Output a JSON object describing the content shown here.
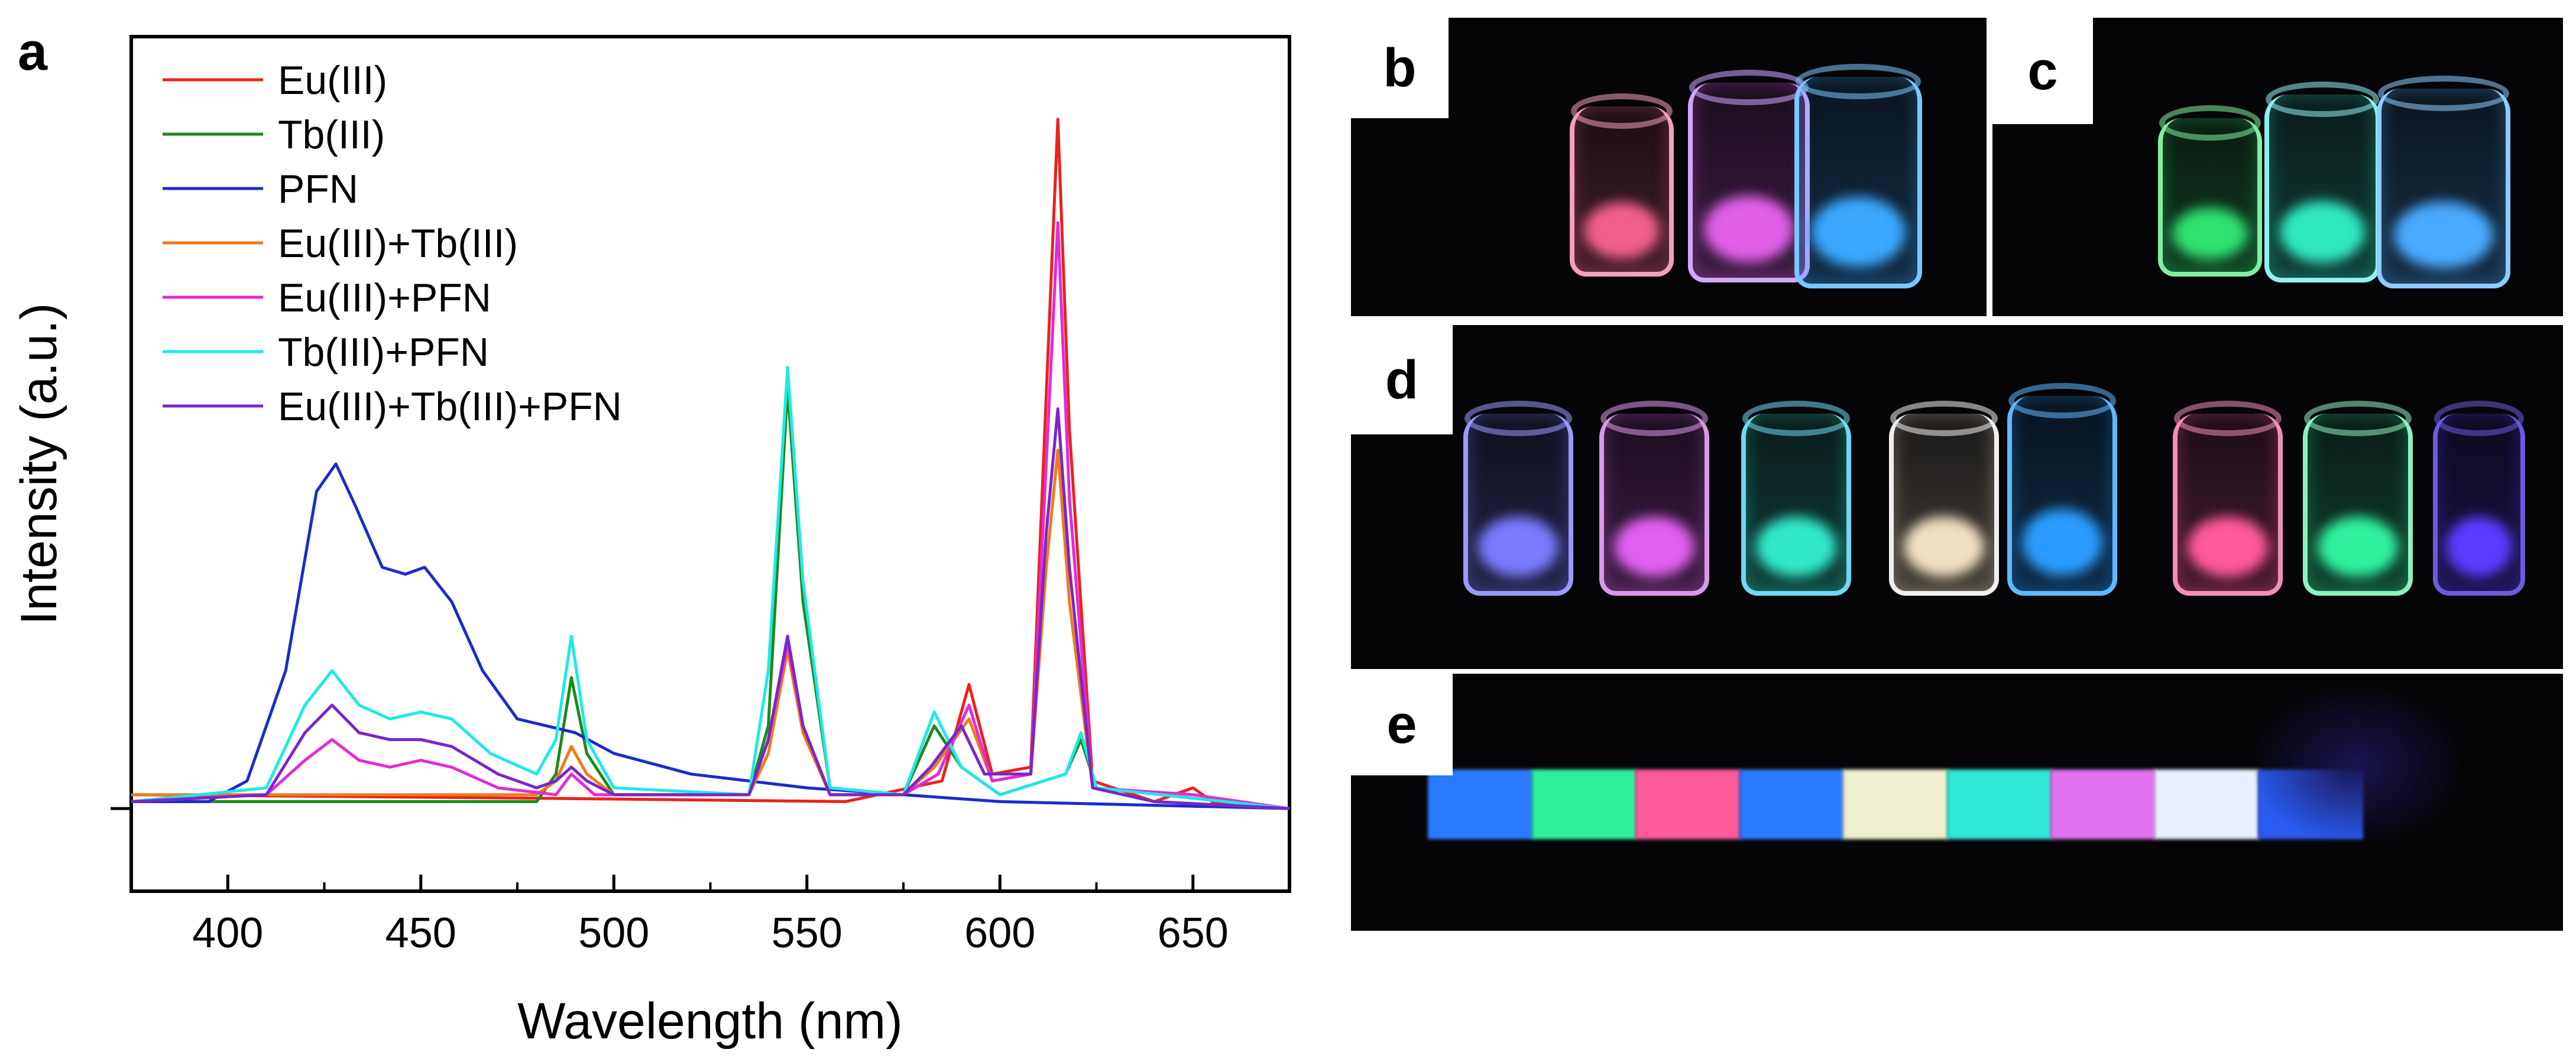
{
  "panel_labels": {
    "a": "a",
    "b": "b",
    "c": "c",
    "d": "d",
    "e": "e"
  },
  "chart_data": {
    "type": "line",
    "title": "",
    "xlabel": "Wavelength (nm)",
    "ylabel": "Intensity (a.u.)",
    "xlim": [
      375,
      675
    ],
    "ylim": [
      -0.12,
      1.12
    ],
    "xticks": [
      400,
      450,
      500,
      550,
      600,
      650
    ],
    "xtick_labels": [
      "400",
      "450",
      "500",
      "550",
      "600",
      "650"
    ],
    "yticks": [
      0
    ],
    "grid": false,
    "legend_position": "top-left",
    "series": [
      {
        "name": "Eu(III)",
        "color": "#e8231c",
        "points": [
          [
            375,
            0.02
          ],
          [
            480,
            0.015
          ],
          [
            560,
            0.01
          ],
          [
            585,
            0.04
          ],
          [
            592,
            0.18
          ],
          [
            598,
            0.05
          ],
          [
            608,
            0.06
          ],
          [
            612,
            0.6
          ],
          [
            615,
            1.0
          ],
          [
            618,
            0.55
          ],
          [
            624,
            0.04
          ],
          [
            640,
            0.01
          ],
          [
            650,
            0.03
          ],
          [
            655,
            0.01
          ],
          [
            675,
            0.0
          ]
        ]
      },
      {
        "name": "Tb(III)",
        "color": "#1b8a1b",
        "points": [
          [
            375,
            0.01
          ],
          [
            480,
            0.01
          ],
          [
            485,
            0.05
          ],
          [
            489,
            0.19
          ],
          [
            493,
            0.08
          ],
          [
            500,
            0.02
          ],
          [
            535,
            0.02
          ],
          [
            540,
            0.12
          ],
          [
            545,
            0.61
          ],
          [
            549,
            0.3
          ],
          [
            556,
            0.03
          ],
          [
            575,
            0.02
          ],
          [
            583,
            0.12
          ],
          [
            590,
            0.06
          ],
          [
            600,
            0.02
          ],
          [
            617,
            0.05
          ],
          [
            621,
            0.1
          ],
          [
            625,
            0.03
          ],
          [
            675,
            0.0
          ]
        ]
      },
      {
        "name": "PFN",
        "color": "#1a2ccc",
        "points": [
          [
            375,
            0.01
          ],
          [
            395,
            0.01
          ],
          [
            405,
            0.04
          ],
          [
            415,
            0.2
          ],
          [
            423,
            0.46
          ],
          [
            428,
            0.5
          ],
          [
            433,
            0.44
          ],
          [
            440,
            0.35
          ],
          [
            446,
            0.34
          ],
          [
            451,
            0.35
          ],
          [
            458,
            0.3
          ],
          [
            466,
            0.2
          ],
          [
            475,
            0.13
          ],
          [
            490,
            0.11
          ],
          [
            500,
            0.08
          ],
          [
            520,
            0.05
          ],
          [
            550,
            0.03
          ],
          [
            575,
            0.02
          ],
          [
            600,
            0.01
          ],
          [
            675,
            0.0
          ]
        ]
      },
      {
        "name": "Eu(III)+Tb(III)",
        "color": "#f07a18",
        "points": [
          [
            375,
            0.02
          ],
          [
            480,
            0.02
          ],
          [
            485,
            0.04
          ],
          [
            489,
            0.09
          ],
          [
            493,
            0.05
          ],
          [
            500,
            0.02
          ],
          [
            535,
            0.02
          ],
          [
            540,
            0.08
          ],
          [
            545,
            0.23
          ],
          [
            549,
            0.11
          ],
          [
            556,
            0.02
          ],
          [
            575,
            0.02
          ],
          [
            583,
            0.06
          ],
          [
            592,
            0.13
          ],
          [
            598,
            0.04
          ],
          [
            608,
            0.05
          ],
          [
            612,
            0.35
          ],
          [
            615,
            0.52
          ],
          [
            618,
            0.3
          ],
          [
            624,
            0.03
          ],
          [
            640,
            0.01
          ],
          [
            675,
            0.0
          ]
        ]
      },
      {
        "name": "Eu(III)+PFN",
        "color": "#e52ad6",
        "points": [
          [
            375,
            0.01
          ],
          [
            410,
            0.02
          ],
          [
            420,
            0.07
          ],
          [
            427,
            0.1
          ],
          [
            434,
            0.07
          ],
          [
            442,
            0.06
          ],
          [
            450,
            0.07
          ],
          [
            458,
            0.06
          ],
          [
            470,
            0.03
          ],
          [
            485,
            0.02
          ],
          [
            489,
            0.05
          ],
          [
            495,
            0.02
          ],
          [
            535,
            0.02
          ],
          [
            540,
            0.1
          ],
          [
            545,
            0.24
          ],
          [
            549,
            0.12
          ],
          [
            556,
            0.02
          ],
          [
            575,
            0.02
          ],
          [
            584,
            0.05
          ],
          [
            592,
            0.15
          ],
          [
            598,
            0.04
          ],
          [
            608,
            0.05
          ],
          [
            612,
            0.5
          ],
          [
            615,
            0.85
          ],
          [
            618,
            0.45
          ],
          [
            624,
            0.03
          ],
          [
            650,
            0.02
          ],
          [
            675,
            0.0
          ]
        ]
      },
      {
        "name": "Tb(III)+PFN",
        "color": "#1ee8e8",
        "points": [
          [
            375,
            0.01
          ],
          [
            410,
            0.03
          ],
          [
            420,
            0.15
          ],
          [
            427,
            0.2
          ],
          [
            434,
            0.15
          ],
          [
            442,
            0.13
          ],
          [
            450,
            0.14
          ],
          [
            458,
            0.13
          ],
          [
            468,
            0.08
          ],
          [
            480,
            0.05
          ],
          [
            485,
            0.1
          ],
          [
            489,
            0.25
          ],
          [
            493,
            0.1
          ],
          [
            500,
            0.03
          ],
          [
            535,
            0.02
          ],
          [
            540,
            0.2
          ],
          [
            545,
            0.64
          ],
          [
            549,
            0.33
          ],
          [
            556,
            0.03
          ],
          [
            575,
            0.02
          ],
          [
            583,
            0.14
          ],
          [
            590,
            0.06
          ],
          [
            600,
            0.02
          ],
          [
            617,
            0.05
          ],
          [
            621,
            0.11
          ],
          [
            625,
            0.03
          ],
          [
            675,
            0.0
          ]
        ]
      },
      {
        "name": "Eu(III)+Tb(III)+PFN",
        "color": "#7a26c9",
        "points": [
          [
            375,
            0.01
          ],
          [
            410,
            0.02
          ],
          [
            420,
            0.11
          ],
          [
            427,
            0.15
          ],
          [
            434,
            0.11
          ],
          [
            442,
            0.1
          ],
          [
            450,
            0.1
          ],
          [
            458,
            0.09
          ],
          [
            470,
            0.05
          ],
          [
            480,
            0.03
          ],
          [
            485,
            0.04
          ],
          [
            489,
            0.06
          ],
          [
            493,
            0.04
          ],
          [
            500,
            0.02
          ],
          [
            535,
            0.02
          ],
          [
            540,
            0.1
          ],
          [
            545,
            0.25
          ],
          [
            549,
            0.12
          ],
          [
            556,
            0.02
          ],
          [
            575,
            0.02
          ],
          [
            582,
            0.06
          ],
          [
            590,
            0.12
          ],
          [
            596,
            0.05
          ],
          [
            608,
            0.05
          ],
          [
            612,
            0.4
          ],
          [
            615,
            0.58
          ],
          [
            618,
            0.35
          ],
          [
            624,
            0.03
          ],
          [
            640,
            0.01
          ],
          [
            675,
            0.0
          ]
        ]
      }
    ]
  },
  "photos": {
    "b_vials": [
      {
        "glow": "#f0608a",
        "rim": "#f4a0b8"
      },
      {
        "glow": "#e060e8",
        "rim": "#d0a8ff"
      },
      {
        "glow": "#3aa8ff",
        "rim": "#7ac8ff"
      }
    ],
    "c_vials": [
      {
        "glow": "#30e070",
        "rim": "#80f0a0"
      },
      {
        "glow": "#30e8c0",
        "rim": "#90f0f0"
      },
      {
        "glow": "#4aaaff",
        "rim": "#90ccff"
      }
    ],
    "d_vials": [
      {
        "glow": "#7a7aff",
        "rim": "#9a9aff"
      },
      {
        "glow": "#e060f0",
        "rim": "#d89ae8"
      },
      {
        "glow": "#30e8c8",
        "rim": "#70d8f0"
      },
      {
        "glow": "#f0e0c0",
        "rim": "#f0f0f0"
      },
      {
        "glow": "#2a9cff",
        "rim": "#60b8ff"
      },
      {
        "glow": "#ff5a9a",
        "rim": "#f090b8"
      },
      {
        "glow": "#30f0a0",
        "rim": "#90f0c0"
      },
      {
        "glow": "#5a3cff",
        "rim": "#6a5cd8"
      }
    ],
    "e_strip": [
      "#2a7aff",
      "#30f0a0",
      "#ff5a9a",
      "#2a7aff",
      "#f0f0d0",
      "#30e8d8",
      "#e070f0",
      "#e8f0ff",
      "#2a5aee"
    ]
  }
}
